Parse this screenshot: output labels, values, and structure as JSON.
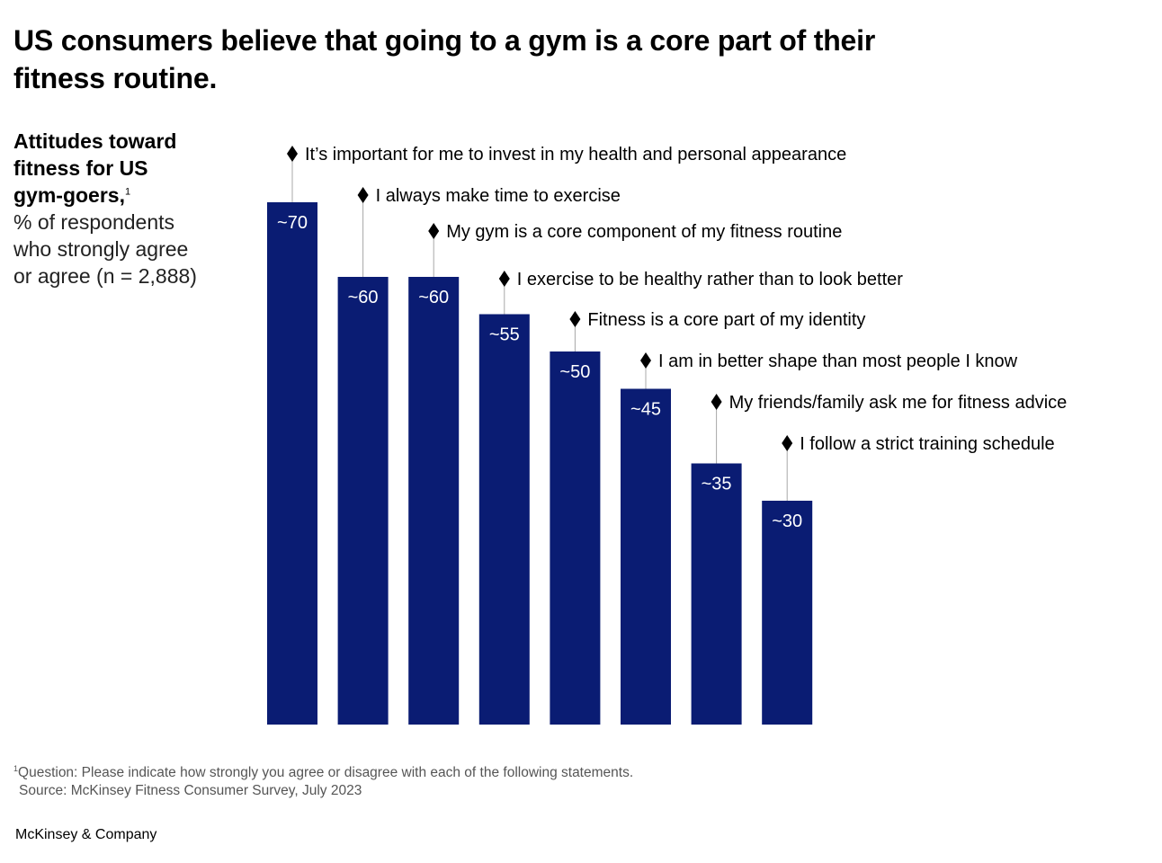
{
  "title_lines": [
    "US consumers believe that going to a gym is a core part of their",
    "fitness routine."
  ],
  "subtitle": {
    "bold_lines": [
      "Attitudes toward",
      "fitness for US",
      "gym-goers,"
    ],
    "footnote_marker": "1",
    "light_lines": [
      "% of respondents",
      "who strongly agree",
      "or agree (n = 2,888)"
    ]
  },
  "chart_data": {
    "type": "bar",
    "title": "Attitudes toward fitness for US gym-goers",
    "ylabel": "% of respondents who strongly agree or agree (n = 2,888)",
    "ylim": [
      0,
      70
    ],
    "grid": false,
    "categories": [
      "It’s important for me to invest in my health and personal appearance",
      "I always make time to exercise",
      "My gym is a core component of my fitness routine",
      "I exercise to be healthy rather than to look better",
      "Fitness is a core part of my identity",
      "I am in better shape than most people I know",
      "My friends/family ask me for fitness advice",
      "I follow a strict training schedule"
    ],
    "values": [
      70,
      60,
      60,
      55,
      50,
      45,
      35,
      30
    ],
    "value_labels": [
      "~70",
      "~60",
      "~60",
      "~55",
      "~50",
      "~45",
      "~35",
      "~30"
    ],
    "bar_color": "#0a1c73"
  },
  "footnote": {
    "marker": "1",
    "question": "Question: Please indicate how strongly you agree or disagree with each of the following statements.",
    "source": "Source: McKinsey Fitness Consumer Survey, July 2023"
  },
  "brand": "McKinsey & Company"
}
